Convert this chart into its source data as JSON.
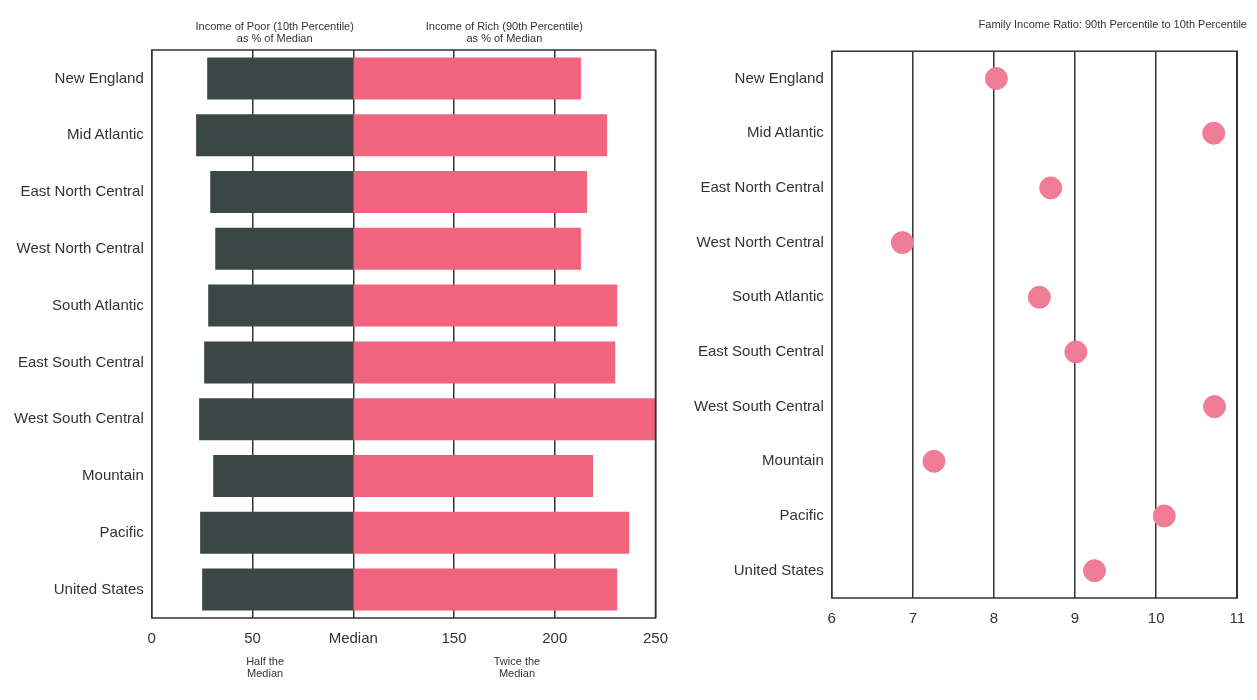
{
  "chart_data": [
    {
      "type": "bar",
      "orientation": "horizontal",
      "categories": [
        "New England",
        "Mid Atlantic",
        "East North Central",
        "West North Central",
        "South Atlantic",
        "East South Central",
        "West South Central",
        "Mountain",
        "Pacific",
        "United States"
      ],
      "series": [
        {
          "name": "Income of Poor (10th Percentile) as % of Median",
          "color": "#3b4745",
          "base": [
            27.5,
            22,
            29,
            31.5,
            28,
            26,
            23.5,
            30.5,
            24,
            25
          ],
          "values": [
            72.5,
            78,
            71,
            68.5,
            72,
            74,
            76.5,
            69.5,
            76,
            75
          ]
        },
        {
          "name": "Income of Rich (90th Percentile) as % of Median",
          "color": "#f2647e",
          "base": [
            100,
            100,
            100,
            100,
            100,
            100,
            100,
            100,
            100,
            100
          ],
          "values": [
            113,
            126,
            116,
            113,
            131,
            130,
            150,
            119,
            137,
            131
          ]
        }
      ],
      "xlim": [
        0,
        250
      ],
      "xticks": [
        0,
        50,
        {
          "value": 100,
          "label": "Median"
        },
        150,
        200,
        250
      ],
      "grid": "x",
      "annotations": [
        "Half the Median",
        "Twice the Median"
      ]
    },
    {
      "type": "scatter",
      "orientation": "horizontal",
      "title": "Family Income Ratio: 90th Percentile to 10th Percentile",
      "categories": [
        "New England",
        "Mid Atlantic",
        "East North Central",
        "West North Central",
        "South Atlantic",
        "East South Central",
        "West South Central",
        "Mountain",
        "Pacific",
        "United States"
      ],
      "values": [
        8.03,
        10.71,
        8.7,
        6.87,
        8.56,
        9.01,
        10.72,
        7.26,
        10.1,
        9.24
      ],
      "color": "#f07d95",
      "marker": "circle",
      "xlim": [
        6,
        11
      ],
      "xticks": [
        6,
        7,
        8,
        9,
        10,
        11
      ],
      "grid": "x"
    }
  ]
}
